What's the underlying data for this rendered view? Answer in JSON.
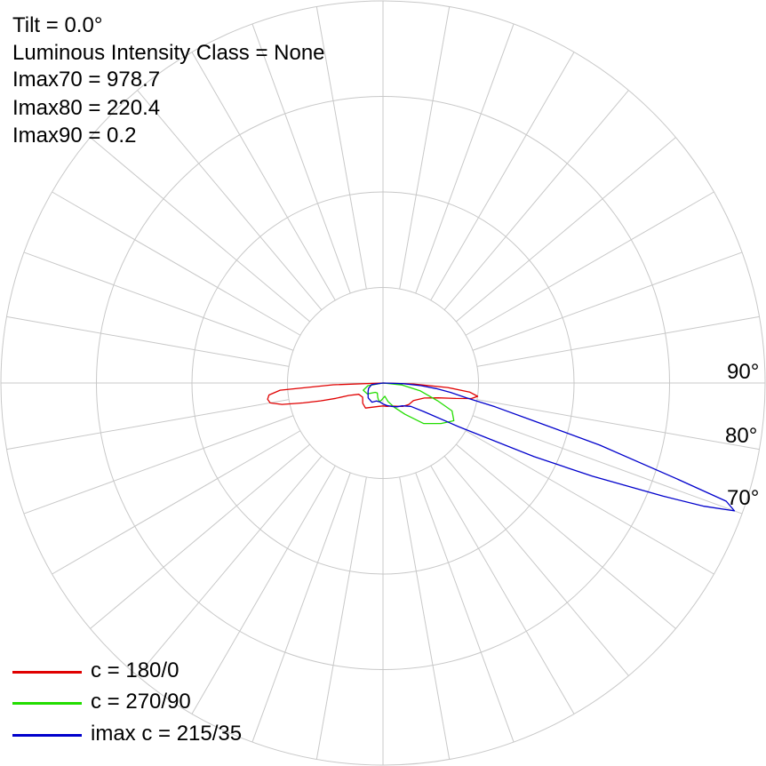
{
  "info": {
    "tilt": "Tilt = 0.0°",
    "intensity_class": "Luminous Intensity Class = None",
    "imax70": "Imax70 = 978.7",
    "imax80": "Imax80 = 220.4",
    "imax90": "Imax90 = 0.2"
  },
  "angle_labels": {
    "a90": "90°",
    "a80": "80°",
    "a70": "70°"
  },
  "legend": [
    {
      "label": "c = 180/0",
      "color": "#e00000"
    },
    {
      "label": "c = 270/90",
      "color": "#22dd00"
    },
    {
      "label": "imax c = 215/35",
      "color": "#0000cc"
    }
  ],
  "chart_data": {
    "type": "polar",
    "grid": true,
    "grid_rings": 4,
    "grid_spoke_step_deg": 10,
    "rmax": 1000,
    "angle_convention": "degrees from nadir (0 = straight down, 90 = horizontal); positive = right side, negative = left side",
    "series": [
      {
        "name": "c = 180/0",
        "color": "#e00000",
        "points": [
          [
            -90,
            0
          ],
          [
            -88,
            130
          ],
          [
            -86,
            270
          ],
          [
            -84,
            300
          ],
          [
            -82,
            305
          ],
          [
            -80,
            300
          ],
          [
            -78,
            270
          ],
          [
            -76,
            215
          ],
          [
            -74,
            170
          ],
          [
            -72,
            130
          ],
          [
            -70,
            95
          ],
          [
            -65,
            70
          ],
          [
            -55,
            65
          ],
          [
            -45,
            75
          ],
          [
            -35,
            80
          ],
          [
            -25,
            70
          ],
          [
            -10,
            62
          ],
          [
            0,
            60
          ],
          [
            10,
            62
          ],
          [
            20,
            64
          ],
          [
            30,
            70
          ],
          [
            40,
            80
          ],
          [
            50,
            88
          ],
          [
            60,
            92
          ],
          [
            70,
            115
          ],
          [
            75,
            150
          ],
          [
            78,
            195
          ],
          [
            80,
            235
          ],
          [
            82,
            250
          ],
          [
            84,
            228
          ],
          [
            86,
            170
          ],
          [
            88,
            80
          ],
          [
            90,
            0
          ]
        ]
      },
      {
        "name": "c = 270/90",
        "color": "#22dd00",
        "points": [
          [
            -90,
            0
          ],
          [
            -80,
            40
          ],
          [
            -70,
            55
          ],
          [
            -55,
            50
          ],
          [
            -40,
            32
          ],
          [
            -30,
            30
          ],
          [
            -20,
            40
          ],
          [
            -12,
            50
          ],
          [
            -5,
            45
          ],
          [
            0,
            40
          ],
          [
            8,
            35
          ],
          [
            15,
            50
          ],
          [
            25,
            70
          ],
          [
            35,
            100
          ],
          [
            45,
            150
          ],
          [
            55,
            185
          ],
          [
            62,
            210
          ],
          [
            68,
            195
          ],
          [
            72,
            150
          ],
          [
            78,
            100
          ],
          [
            84,
            50
          ],
          [
            90,
            0
          ]
        ]
      },
      {
        "name": "imax c = 215/35",
        "color": "#0000cc",
        "points": [
          [
            -90,
            0
          ],
          [
            -82,
            30
          ],
          [
            -70,
            40
          ],
          [
            -60,
            45
          ],
          [
            -45,
            55
          ],
          [
            -30,
            58
          ],
          [
            -20,
            50
          ],
          [
            -10,
            50
          ],
          [
            0,
            55
          ],
          [
            10,
            60
          ],
          [
            20,
            65
          ],
          [
            30,
            72
          ],
          [
            40,
            78
          ],
          [
            50,
            95
          ],
          [
            55,
            130
          ],
          [
            60,
            230
          ],
          [
            64,
            440
          ],
          [
            66,
            600
          ],
          [
            68,
            790
          ],
          [
            69,
            900
          ],
          [
            70,
            978.7
          ],
          [
            71,
            950
          ],
          [
            72,
            800
          ],
          [
            74,
            590
          ],
          [
            76,
            400
          ],
          [
            78,
            300
          ],
          [
            80,
            220.4
          ],
          [
            82,
            180
          ],
          [
            84,
            140
          ],
          [
            86,
            100
          ],
          [
            88,
            55
          ],
          [
            90,
            0.2
          ]
        ]
      }
    ]
  }
}
